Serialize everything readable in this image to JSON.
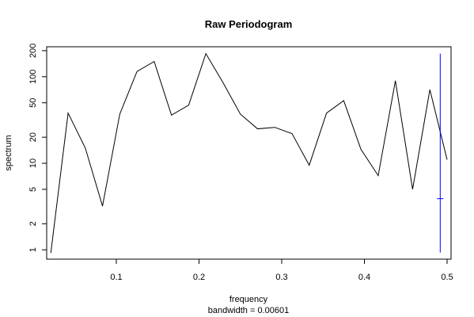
{
  "chart_data": {
    "type": "line",
    "title": "Raw Periodogram",
    "xlabel": "frequency",
    "sublabel": "bandwidth = 0.00601",
    "ylabel": "spectrum",
    "y_scale": "log",
    "xlim": [
      0.0158,
      0.5048
    ],
    "ylim": [
      0.78,
      222
    ],
    "x_ticks": [
      0.1,
      0.2,
      0.3,
      0.4,
      0.5
    ],
    "x_tick_labels": [
      "0.1",
      "0.2",
      "0.3",
      "0.4",
      "0.5"
    ],
    "y_ticks": [
      1,
      2,
      5,
      10,
      20,
      50,
      100,
      200
    ],
    "y_tick_labels": [
      "1",
      "2",
      "5",
      "10",
      "20",
      "50",
      "100",
      "200"
    ],
    "grid": false,
    "series": [
      {
        "color": "#000000",
        "x": [
          0.0208,
          0.0417,
          0.0625,
          0.0833,
          0.1042,
          0.125,
          0.1458,
          0.1667,
          0.1875,
          0.2083,
          0.2292,
          0.25,
          0.2708,
          0.2917,
          0.3125,
          0.3333,
          0.3542,
          0.375,
          0.3958,
          0.4167,
          0.4375,
          0.4583,
          0.4792,
          0.5
        ],
        "values": [
          0.92,
          38,
          15,
          3.2,
          37,
          115,
          150,
          36,
          47,
          185,
          85,
          37,
          25,
          26,
          22,
          9.5,
          38,
          53,
          14.5,
          7.2,
          90,
          5.0,
          71,
          11
        ]
      }
    ],
    "ci_bar": {
      "color": "#0000ff",
      "x": 0.4917,
      "lower": 0.93,
      "upper": 185,
      "center": 3.9
    }
  }
}
